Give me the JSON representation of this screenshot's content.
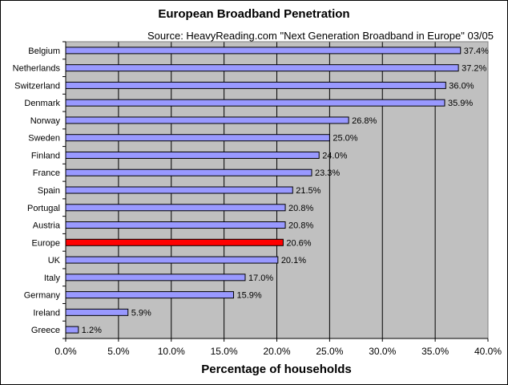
{
  "chart_data": {
    "type": "bar",
    "orientation": "horizontal",
    "title": "European Broadband Penetration",
    "subtitle": "Source: HeavyReading.com \"Next Generation Broadband in Europe\" 03/05",
    "xlabel": "Percentage of households",
    "ylabel": "",
    "xlim": [
      0,
      40
    ],
    "xticks": [
      "0.0%",
      "5.0%",
      "10.0%",
      "15.0%",
      "20.0%",
      "25.0%",
      "30.0%",
      "35.0%",
      "40.0%"
    ],
    "grid": true,
    "categories": [
      "Belgium",
      "Netherlands",
      "Switzerland",
      "Denmark",
      "Norway",
      "Sweden",
      "Finland",
      "France",
      "Spain",
      "Portugal",
      "Austria",
      "Europe",
      "UK",
      "Italy",
      "Germany",
      "Ireland",
      "Greece"
    ],
    "values": [
      37.4,
      37.2,
      36.0,
      35.9,
      26.8,
      25.0,
      24.0,
      23.3,
      21.5,
      20.8,
      20.8,
      20.6,
      20.1,
      17.0,
      15.9,
      5.9,
      1.2
    ],
    "labels": [
      "37.4%",
      "37.2%",
      "36.0%",
      "35.9%",
      "26.8%",
      "25.0%",
      "24.0%",
      "23.3%",
      "21.5%",
      "20.8%",
      "20.8%",
      "20.6%",
      "20.1%",
      "17.0%",
      "15.9%",
      "5.9%",
      "1.2%"
    ],
    "highlight": "Europe",
    "colors": {
      "bar": "#9999ff",
      "highlight": "#ff0000",
      "plot_background": "#c0c0c0",
      "gridline": "#000000"
    }
  }
}
